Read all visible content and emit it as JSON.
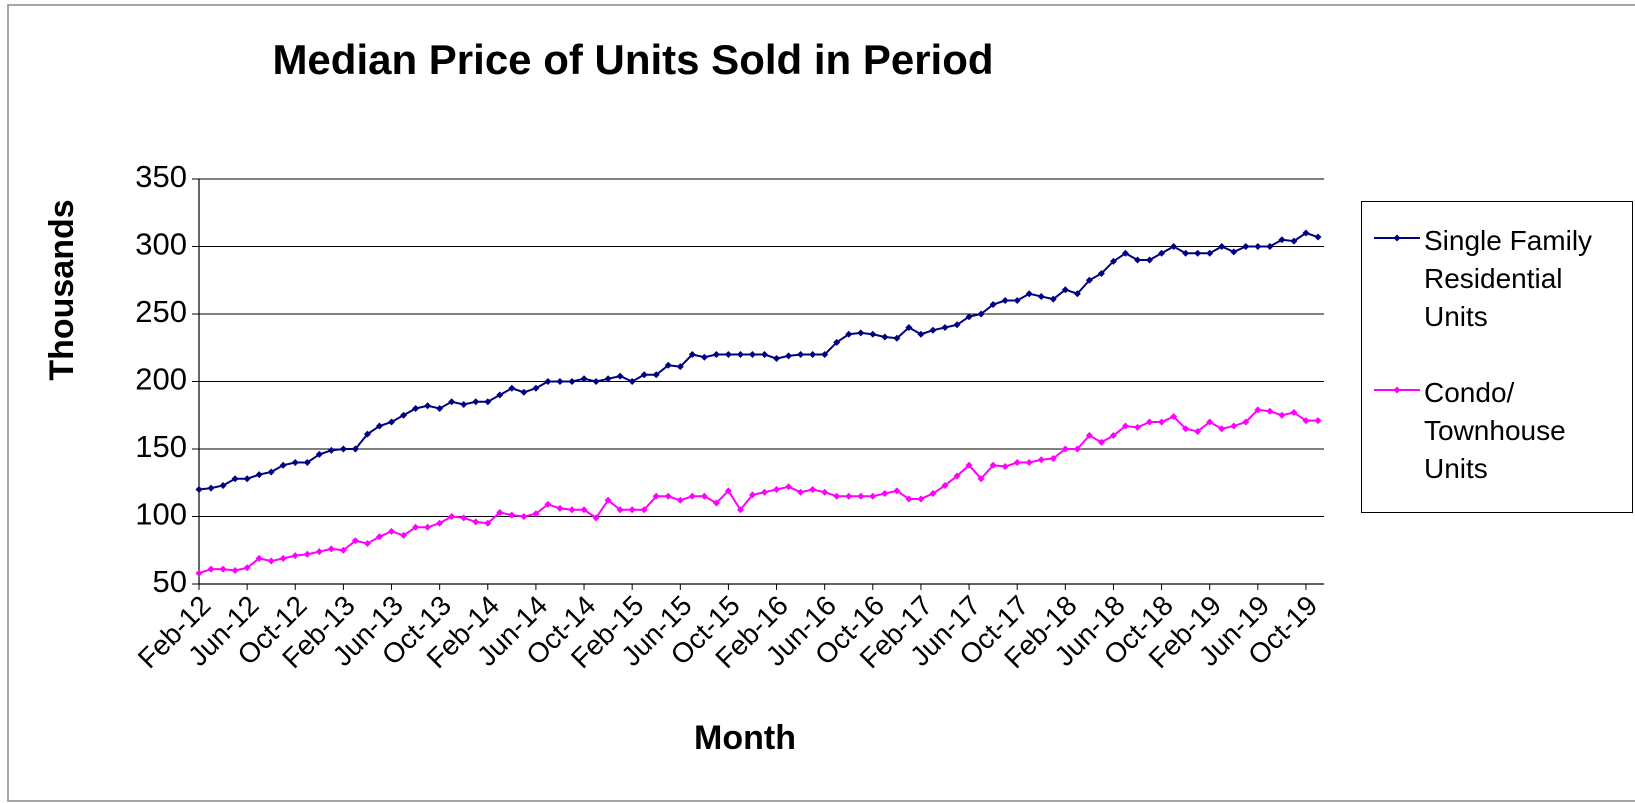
{
  "chart_data": {
    "type": "line",
    "title": "Median Price of Units Sold in Period",
    "x_label": "Month",
    "y_label": "Thousands",
    "categories": [
      "Feb-12",
      null,
      null,
      null,
      "Jun-12",
      null,
      null,
      null,
      "Oct-12",
      null,
      null,
      null,
      "Feb-13",
      null,
      null,
      null,
      "Jun-13",
      null,
      null,
      null,
      "Oct-13",
      null,
      null,
      null,
      "Feb-14",
      null,
      null,
      null,
      "Jun-14",
      null,
      null,
      null,
      "Oct-14",
      null,
      null,
      null,
      "Feb-15",
      null,
      null,
      null,
      "Jun-15",
      null,
      null,
      null,
      "Oct-15",
      null,
      null,
      null,
      "Feb-16",
      null,
      null,
      null,
      "Jun-16",
      null,
      null,
      null,
      "Oct-16",
      null,
      null,
      null,
      "Feb-17",
      null,
      null,
      null,
      "Jun-17",
      null,
      null,
      null,
      "Oct-17",
      null,
      null,
      null,
      "Feb-18",
      null,
      null,
      null,
      "Jun-18",
      null,
      null,
      null,
      "Oct-18",
      null,
      null,
      null,
      "Feb-19",
      null,
      null,
      null,
      "Jun-19",
      null,
      null,
      null,
      "Oct-19",
      null
    ],
    "series": [
      {
        "name": "Single Family Residential Units",
        "color": "#000080",
        "values": [
          120,
          121,
          123,
          128,
          128,
          131,
          133,
          138,
          140,
          140,
          146,
          149,
          150,
          150,
          161,
          167,
          170,
          175,
          180,
          182,
          180,
          185,
          183,
          185,
          185,
          190,
          195,
          192,
          195,
          200,
          200,
          200,
          202,
          200,
          202,
          204,
          200,
          205,
          205,
          212,
          211,
          220,
          218,
          220,
          220,
          220,
          220,
          220,
          217,
          219,
          220,
          220,
          220,
          229,
          235,
          236,
          235,
          233,
          232,
          240,
          235,
          238,
          240,
          242,
          248,
          250,
          257,
          260,
          260,
          265,
          263,
          261,
          268,
          265,
          275,
          280,
          289,
          295,
          290,
          290,
          295,
          300,
          295,
          295,
          295,
          300,
          296,
          300,
          300,
          300,
          305,
          304,
          310,
          307
        ]
      },
      {
        "name": "Condo/ Townhouse Units",
        "color": "#ff00ff",
        "values": [
          58,
          61,
          61,
          60,
          62,
          69,
          67,
          69,
          71,
          72,
          74,
          76,
          75,
          82,
          80,
          85,
          89,
          86,
          92,
          92,
          95,
          100,
          99,
          96,
          95,
          103,
          101,
          100,
          102,
          109,
          106,
          105,
          105,
          99,
          112,
          105,
          105,
          105,
          115,
          115,
          112,
          115,
          115,
          110,
          119,
          105,
          116,
          118,
          120,
          122,
          118,
          120,
          118,
          115,
          115,
          115,
          115,
          117,
          119,
          113,
          113,
          117,
          123,
          130,
          138,
          128,
          138,
          137,
          140,
          140,
          142,
          143,
          150,
          150,
          160,
          155,
          160,
          167,
          166,
          170,
          170,
          174,
          165,
          163,
          170,
          165,
          167,
          170,
          179,
          178,
          175,
          177,
          171,
          171
        ]
      }
    ],
    "ylim": [
      50,
      350
    ],
    "yticks": [
      50,
      100,
      150,
      200,
      250,
      300,
      350
    ],
    "grid": true,
    "legend": "right"
  }
}
